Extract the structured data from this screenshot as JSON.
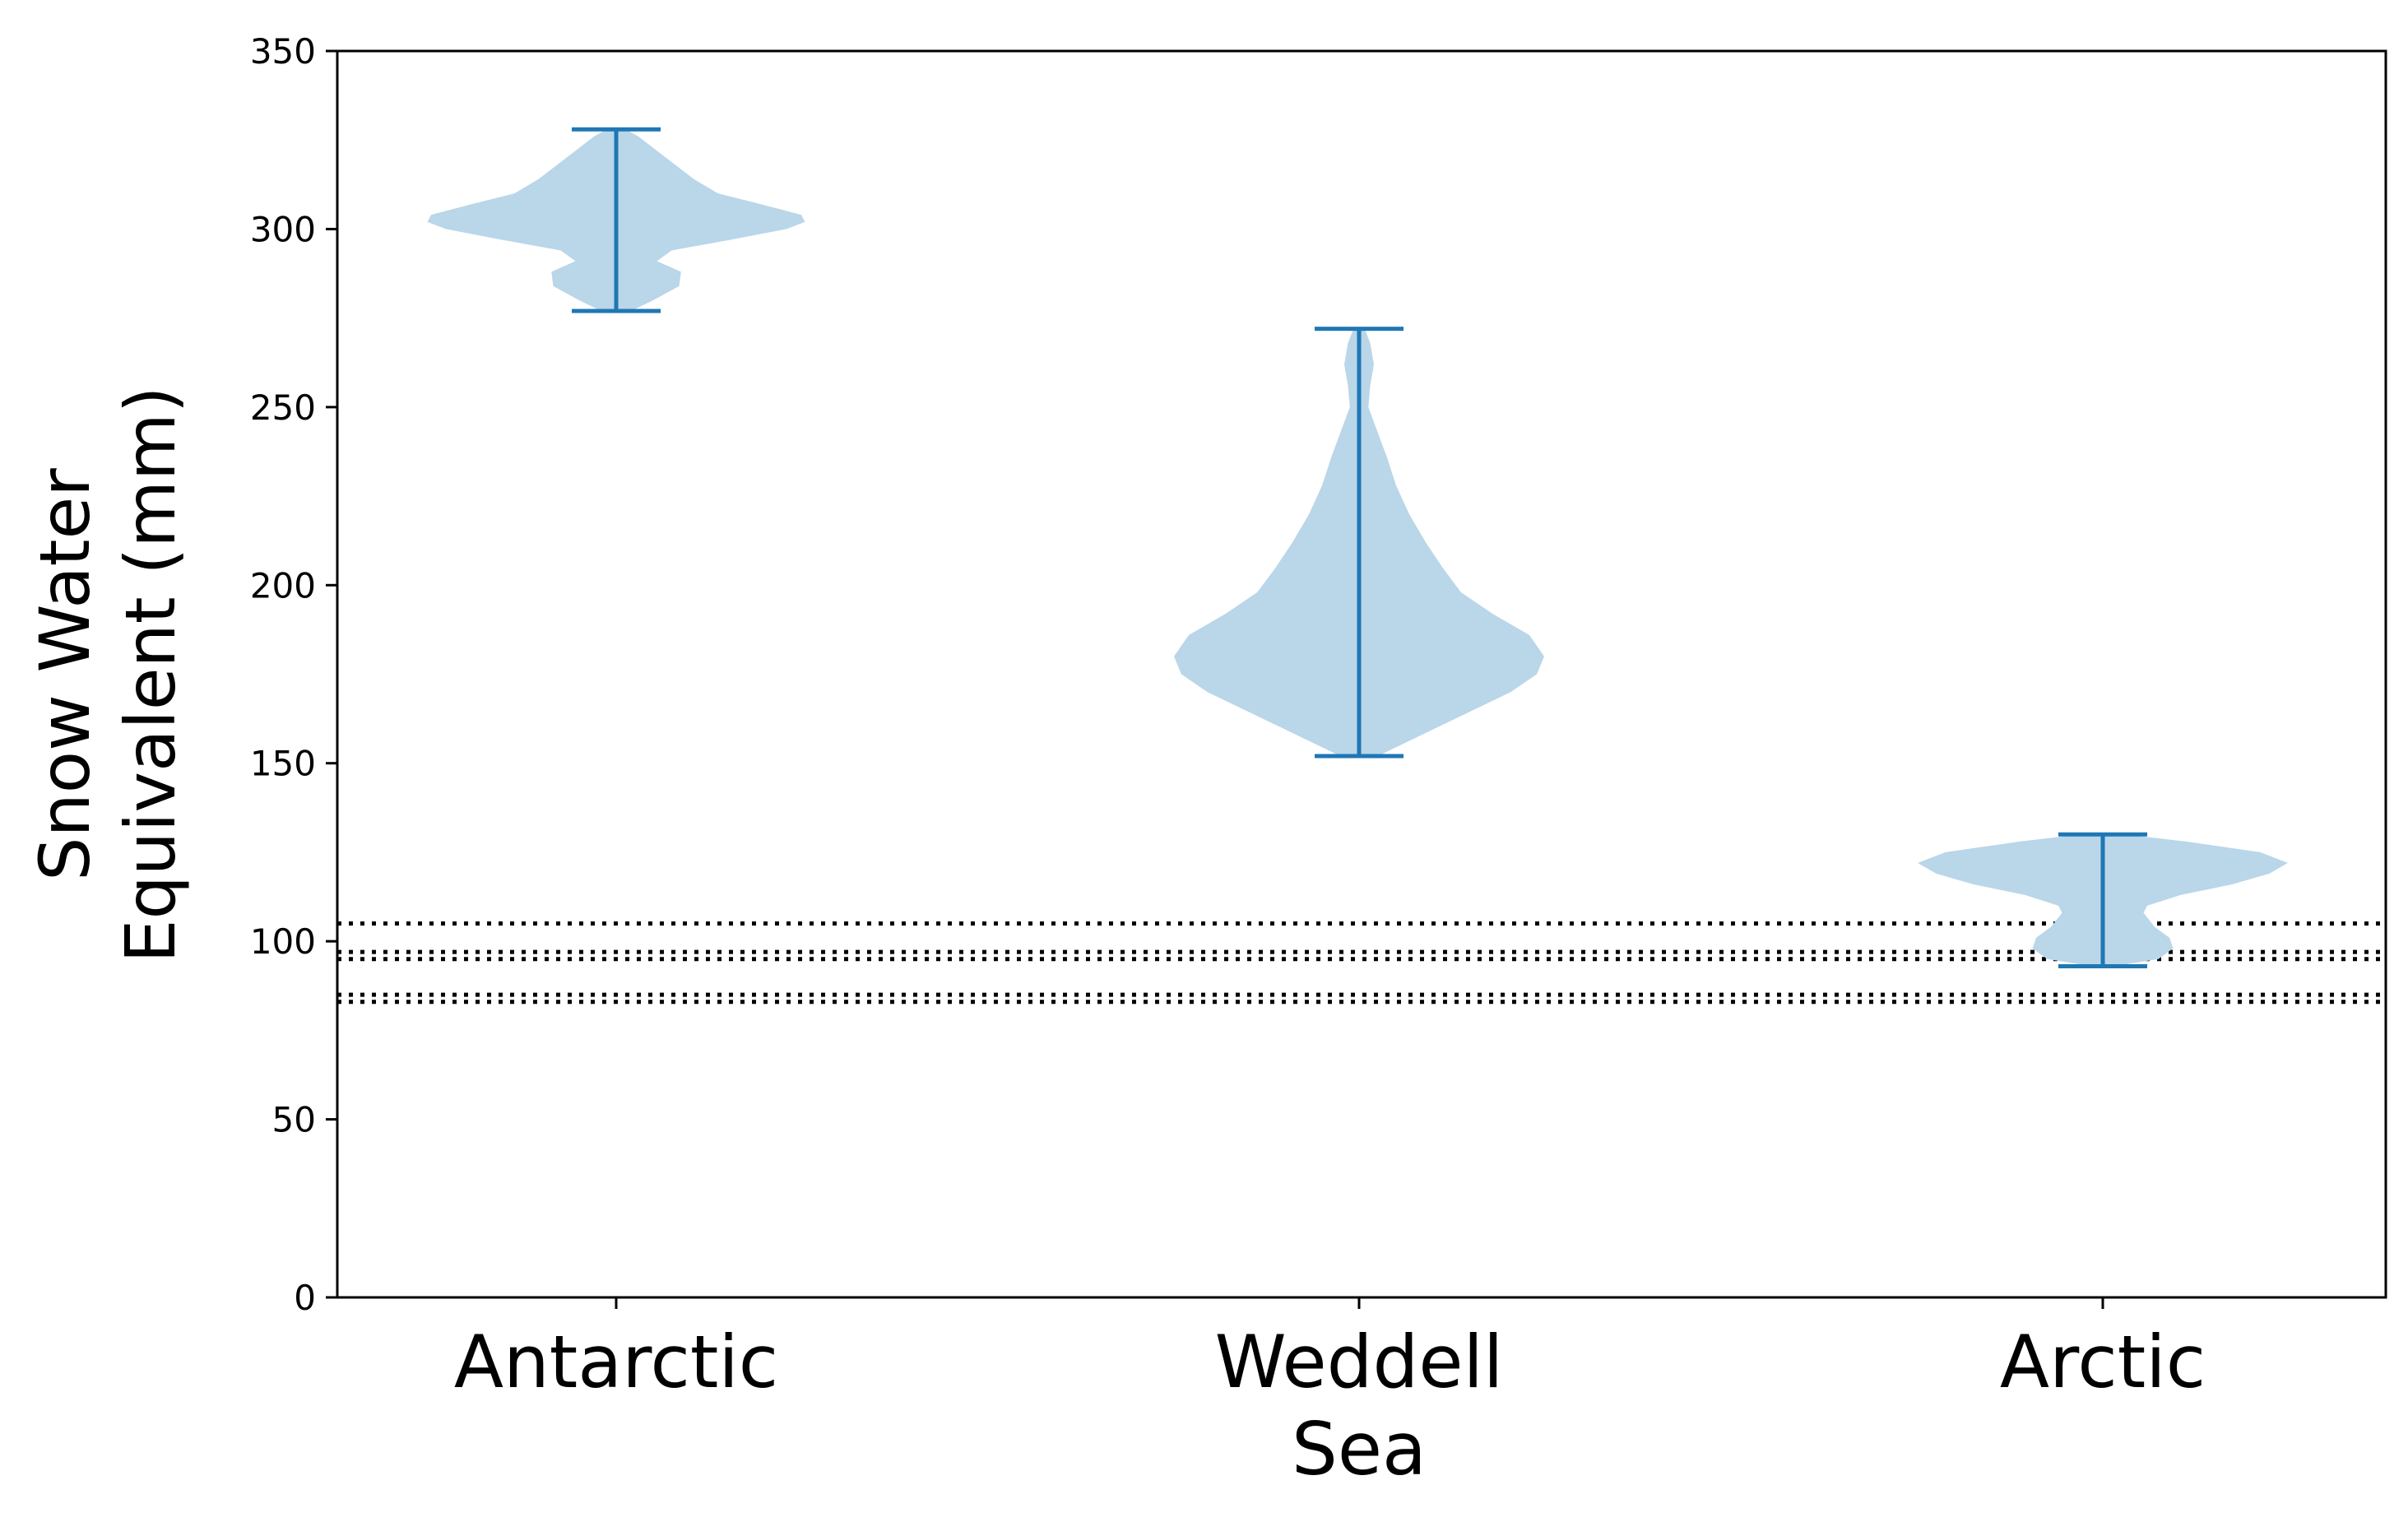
{
  "chart_data": {
    "type": "violin",
    "xlabel": "",
    "ylabel": [
      "Snow Water",
      "Equivalent (mm)"
    ],
    "ylim": [
      0,
      350
    ],
    "yticks": [
      0,
      50,
      100,
      150,
      200,
      250,
      300,
      350
    ],
    "categories": [
      [
        "Antarctic"
      ],
      [
        "Weddell",
        "Sea"
      ],
      [
        "Arctic"
      ]
    ],
    "colors": {
      "violin_fill": "#bad6e9",
      "whisker": "#1f77b4",
      "reference_line": "#000000"
    },
    "violins": [
      {
        "category": "Antarctic",
        "min": 277,
        "max": 328,
        "density": [
          [
            277,
            0.08
          ],
          [
            280,
            0.2
          ],
          [
            284,
            0.34
          ],
          [
            288,
            0.35
          ],
          [
            291,
            0.22
          ],
          [
            294,
            0.3
          ],
          [
            297,
            0.62
          ],
          [
            300,
            0.92
          ],
          [
            302,
            1.02
          ],
          [
            304,
            1.0
          ],
          [
            307,
            0.78
          ],
          [
            310,
            0.55
          ],
          [
            314,
            0.42
          ],
          [
            318,
            0.32
          ],
          [
            322,
            0.22
          ],
          [
            326,
            0.12
          ],
          [
            328,
            0.05
          ]
        ]
      },
      {
        "category": "Weddell Sea",
        "min": 152,
        "max": 272,
        "density": [
          [
            152,
            0.1
          ],
          [
            155,
            0.22
          ],
          [
            160,
            0.42
          ],
          [
            165,
            0.62
          ],
          [
            170,
            0.82
          ],
          [
            175,
            0.96
          ],
          [
            180,
            1.0
          ],
          [
            186,
            0.92
          ],
          [
            192,
            0.72
          ],
          [
            198,
            0.55
          ],
          [
            205,
            0.45
          ],
          [
            212,
            0.36
          ],
          [
            220,
            0.27
          ],
          [
            228,
            0.2
          ],
          [
            236,
            0.15
          ],
          [
            243,
            0.1
          ],
          [
            250,
            0.05
          ],
          [
            256,
            0.06
          ],
          [
            262,
            0.08
          ],
          [
            268,
            0.06
          ],
          [
            272,
            0.03
          ]
        ]
      },
      {
        "category": "Arctic",
        "min": 93,
        "max": 130,
        "density": [
          [
            93,
            0.06
          ],
          [
            95,
            0.3
          ],
          [
            98,
            0.38
          ],
          [
            101,
            0.36
          ],
          [
            104,
            0.28
          ],
          [
            108,
            0.22
          ],
          [
            110,
            0.24
          ],
          [
            113,
            0.42
          ],
          [
            116,
            0.7
          ],
          [
            119,
            0.9
          ],
          [
            122,
            1.0
          ],
          [
            125,
            0.85
          ],
          [
            128,
            0.45
          ],
          [
            130,
            0.12
          ]
        ]
      }
    ],
    "reference_lines": [
      {
        "y": 105,
        "style": "dotted"
      },
      {
        "y": 97,
        "style": "dotted"
      },
      {
        "y": 95,
        "style": "dotted"
      },
      {
        "y": 85,
        "style": "dotted"
      },
      {
        "y": 83,
        "style": "dotted"
      }
    ]
  }
}
